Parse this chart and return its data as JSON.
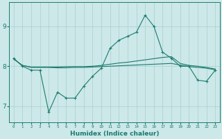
{
  "xlabel": "Humidex (Indice chaleur)",
  "x_values": [
    0,
    1,
    2,
    3,
    4,
    5,
    6,
    7,
    8,
    9,
    10,
    11,
    12,
    13,
    14,
    15,
    16,
    17,
    18,
    19,
    20,
    21,
    22,
    23
  ],
  "line1_y": [
    8.2,
    8.0,
    7.9,
    7.9,
    6.85,
    7.35,
    7.2,
    7.2,
    7.5,
    7.75,
    7.95,
    8.45,
    8.65,
    8.75,
    8.85,
    9.28,
    9.0,
    8.35,
    8.2,
    8.0,
    8.0,
    7.65,
    7.62,
    7.9
  ],
  "line2_y": [
    8.18,
    8.02,
    7.98,
    7.98,
    7.98,
    7.98,
    7.99,
    7.99,
    7.99,
    8.0,
    8.02,
    8.05,
    8.08,
    8.1,
    8.13,
    8.16,
    8.19,
    8.22,
    8.24,
    8.07,
    8.02,
    8.0,
    7.97,
    7.93
  ],
  "line3_y": [
    8.18,
    8.02,
    7.97,
    7.97,
    7.97,
    7.96,
    7.96,
    7.97,
    7.97,
    7.98,
    7.99,
    8.0,
    8.01,
    8.02,
    8.03,
    8.04,
    8.05,
    8.06,
    8.07,
    8.03,
    7.99,
    7.97,
    7.95,
    7.91
  ],
  "line_color": "#1a7a6e",
  "bg_color": "#cce8e8",
  "grid_color": "#aacfcf",
  "ylim_min": 6.6,
  "ylim_max": 9.6,
  "yticks": [
    7,
    8,
    9
  ],
  "xtick_labels": [
    "0",
    "1",
    "2",
    "3",
    "4",
    "5",
    "6",
    "7",
    "8",
    "9",
    "10",
    "11",
    "12",
    "13",
    "14",
    "15",
    "16",
    "17",
    "18",
    "19",
    "20",
    "21",
    "22",
    "23"
  ]
}
